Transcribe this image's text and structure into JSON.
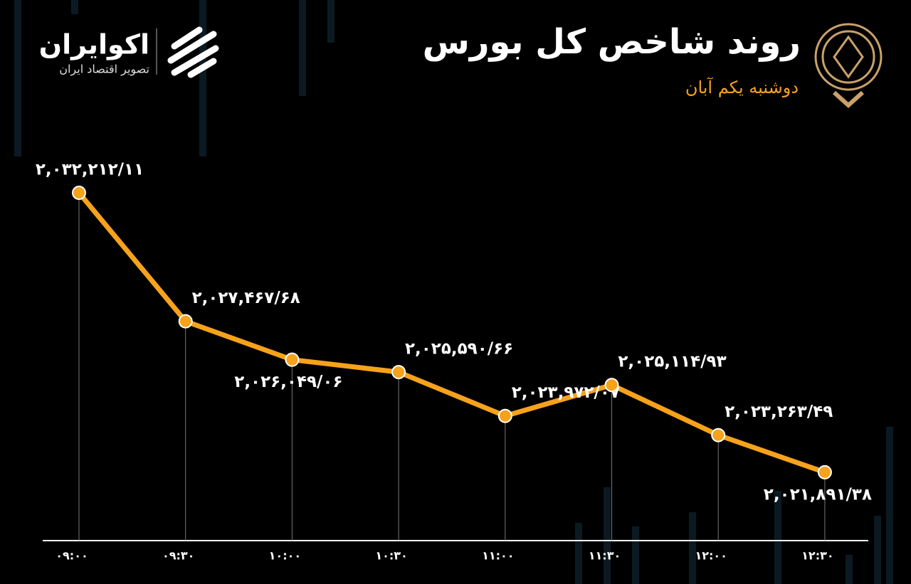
{
  "header": {
    "title": "روند شاخص کل بورس",
    "subtitle": "دوشنبه یکم آبان",
    "brand": "اکوایران",
    "tagline": "تصویر اقتصاد ایران"
  },
  "chart_data": {
    "type": "line",
    "categories": [
      "۰۹:۰۰",
      "۰۹:۳۰",
      "۱۰:۰۰",
      "۱۰:۳۰",
      "۱۱:۰۰",
      "۱۱:۳۰",
      "۱۲:۰۰",
      "۱۲:۳۰"
    ],
    "values": [
      2032212.11,
      2027467.68,
      2026049.06,
      2025590.66,
      2023972.07,
      2025114.93,
      2023263.49,
      2021891.38
    ],
    "value_labels": [
      "۲,۰۳۲,۲۱۲/۱۱",
      "۲,۰۲۷,۴۶۷/۶۸",
      "۲,۰۲۶,۰۴۹/۰۶",
      "۲,۰۲۵,۵۹۰/۶۶",
      "۲,۰۲۳,۹۷۲/۰۷",
      "۲,۰۲۵,۱۱۴/۹۳",
      "۲,۰۲۳,۲۶۳/۴۹",
      "۲,۰۲۱,۸۹۱/۳۸"
    ],
    "color": "#f7a21b",
    "ylim": [
      2019000,
      2034000
    ]
  }
}
